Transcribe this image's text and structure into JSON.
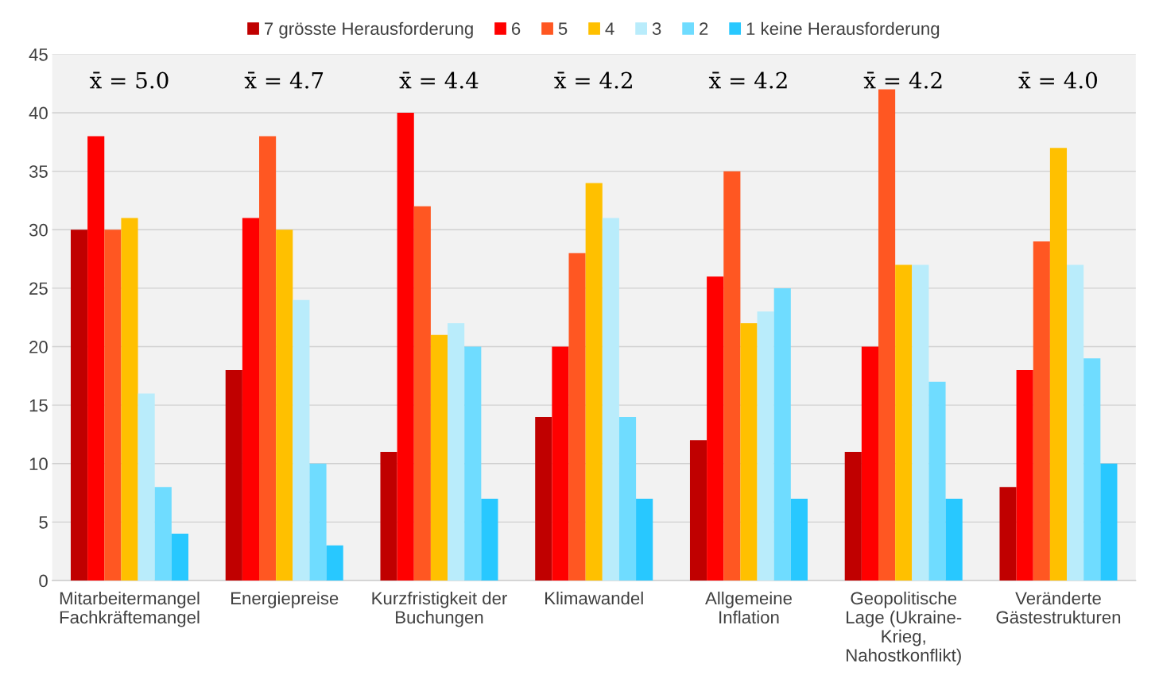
{
  "chart_data": {
    "type": "bar",
    "categories": [
      "Mitarbeitermangel\nFachkräftemangel",
      "Energiepreise",
      "Kurzfristigkeit der\nBuchungen",
      "Klimawandel",
      "Allgemeine\nInflation",
      "Geopolitische\nLage (Ukraine-\nKrieg,\nNahostkonflikt)",
      "Veränderte\nGästestrukturen"
    ],
    "series": [
      {
        "name": "7 grösste Herausforderung",
        "color": "#c00000",
        "values": [
          30,
          18,
          11,
          14,
          12,
          11,
          8
        ]
      },
      {
        "name": "6",
        "color": "#ff0000",
        "values": [
          38,
          31,
          40,
          20,
          26,
          20,
          18
        ]
      },
      {
        "name": "5",
        "color": "#ff5722",
        "values": [
          30,
          38,
          32,
          28,
          35,
          42,
          29
        ]
      },
      {
        "name": "4",
        "color": "#ffc000",
        "values": [
          31,
          30,
          21,
          34,
          22,
          27,
          37
        ]
      },
      {
        "name": "3",
        "color": "#b9ecfb",
        "values": [
          16,
          24,
          22,
          31,
          23,
          27,
          27
        ]
      },
      {
        "name": "2",
        "color": "#6fdcff",
        "values": [
          8,
          10,
          20,
          14,
          25,
          17,
          19
        ]
      },
      {
        "name": "1 keine Herausforderung",
        "color": "#28c8ff",
        "values": [
          4,
          3,
          7,
          7,
          7,
          7,
          10
        ]
      }
    ],
    "annotations": [
      "x̄ = 5.0",
      "x̄ = 4.7",
      "x̄ = 4.4",
      "x̄ = 4.2",
      "x̄ = 4.2",
      "x̄ = 4.2",
      "x̄ = 4.0"
    ],
    "ylim": [
      0,
      45
    ],
    "yticks": [
      0,
      5,
      10,
      15,
      20,
      25,
      30,
      35,
      40,
      45
    ],
    "grid": "y",
    "legend": "top"
  }
}
